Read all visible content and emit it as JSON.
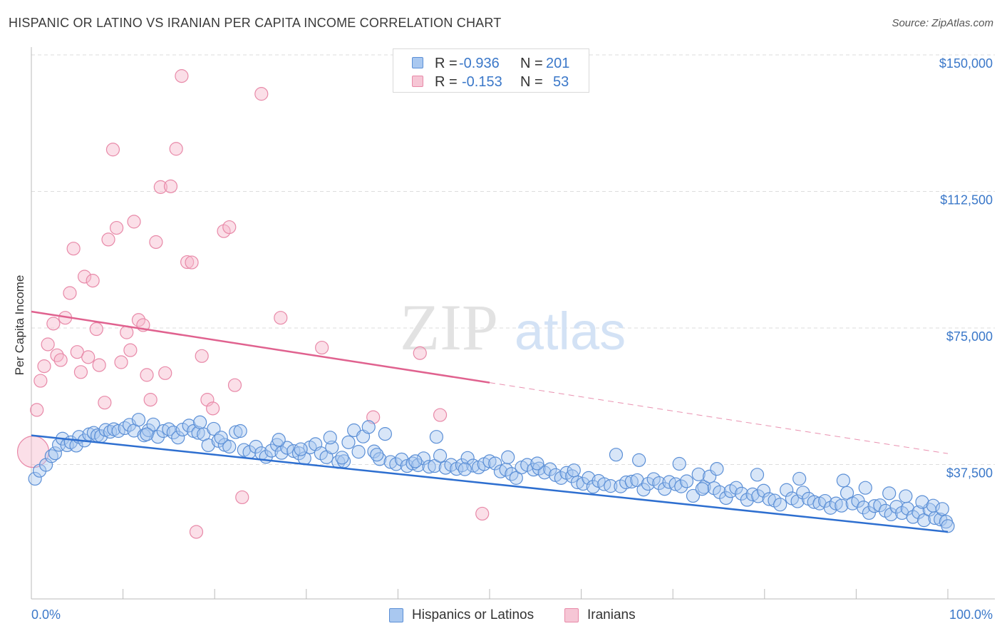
{
  "title": "HISPANIC OR LATINO VS IRANIAN PER CAPITA INCOME CORRELATION CHART",
  "source": "Source: ZipAtlas.com",
  "watermark": {
    "zip": "ZIP",
    "atlas": "atlas"
  },
  "colors": {
    "blue_fill": "#a9c8f0",
    "blue_stroke": "#5b8fd6",
    "blue_line": "#2e6fd0",
    "pink_fill": "#f6b8cb",
    "pink_stroke": "#e889a8",
    "pink_line": "#e0628f",
    "axis_label": "#3b78c9",
    "grid": "#dddddd"
  },
  "stats": {
    "r_label": "R =",
    "n_label": "N =",
    "rows": [
      {
        "series": "Hispanics or Latinos",
        "r": "-0.936",
        "n": "201",
        "color": "blue"
      },
      {
        "series": "Iranians",
        "r": "-0.153",
        "n": "53",
        "color": "pink"
      }
    ]
  },
  "legend": [
    {
      "label": "Hispanics or Latinos",
      "color": "blue"
    },
    {
      "label": "Iranians",
      "color": "pink"
    }
  ],
  "chart_data": {
    "type": "scatter",
    "title": "HISPANIC OR LATINO VS IRANIAN PER CAPITA INCOME CORRELATION CHART",
    "xlabel": "",
    "ylabel": "Per Capita Income",
    "xlim": [
      0,
      100
    ],
    "ylim": [
      0,
      150000
    ],
    "x_tick_labels": [
      "0.0%",
      "100.0%"
    ],
    "y_ticks": [
      37500,
      75000,
      112500,
      150000
    ],
    "y_tick_labels": [
      "$37,500",
      "$75,000",
      "$112,500",
      "$150,000"
    ],
    "grid": true,
    "legend_position": "bottom",
    "series": [
      {
        "name": "Hispanics or Latinos",
        "trend": {
          "x": [
            0,
            100
          ],
          "y": [
            45500,
            19000
          ]
        },
        "points": [
          [
            0.4,
            33600
          ],
          [
            0.9,
            35800
          ],
          [
            1.6,
            37400
          ],
          [
            2.2,
            39800
          ],
          [
            2.6,
            40600
          ],
          [
            3.0,
            42900
          ],
          [
            3.4,
            44600
          ],
          [
            3.9,
            42800
          ],
          [
            4.3,
            43600
          ],
          [
            4.9,
            42700
          ],
          [
            5.2,
            45100
          ],
          [
            5.8,
            44100
          ],
          [
            6.3,
            45800
          ],
          [
            6.8,
            46200
          ],
          [
            7.2,
            45500
          ],
          [
            7.6,
            45300
          ],
          [
            8.1,
            47000
          ],
          [
            8.6,
            46500
          ],
          [
            9.0,
            47200
          ],
          [
            9.5,
            46700
          ],
          [
            10.2,
            47500
          ],
          [
            10.7,
            48400
          ],
          [
            11.2,
            46800
          ],
          [
            11.7,
            49800
          ],
          [
            12.3,
            45500
          ],
          [
            12.8,
            46900
          ],
          [
            13.3,
            48500
          ],
          [
            13.8,
            45100
          ],
          [
            14.4,
            46700
          ],
          [
            15.0,
            47200
          ],
          [
            15.5,
            46300
          ],
          [
            16.0,
            44900
          ],
          [
            16.5,
            47100
          ],
          [
            17.2,
            48200
          ],
          [
            17.7,
            46700
          ],
          [
            18.2,
            46200
          ],
          [
            18.8,
            45800
          ],
          [
            19.3,
            42800
          ],
          [
            19.9,
            47300
          ],
          [
            20.4,
            44000
          ],
          [
            21.1,
            42900
          ],
          [
            21.6,
            42400
          ],
          [
            22.3,
            46400
          ],
          [
            22.8,
            46700
          ],
          [
            23.2,
            41500
          ],
          [
            23.8,
            40900
          ],
          [
            24.5,
            42400
          ],
          [
            25.1,
            40600
          ],
          [
            25.6,
            39600
          ],
          [
            26.2,
            41300
          ],
          [
            26.8,
            42900
          ],
          [
            27.3,
            40700
          ],
          [
            27.9,
            42100
          ],
          [
            28.6,
            41200
          ],
          [
            29.2,
            40600
          ],
          [
            29.8,
            39200
          ],
          [
            30.4,
            42200
          ],
          [
            31.0,
            43100
          ],
          [
            31.6,
            40600
          ],
          [
            32.2,
            39500
          ],
          [
            32.8,
            42200
          ],
          [
            33.5,
            38200
          ],
          [
            34.1,
            38400
          ],
          [
            34.6,
            43600
          ],
          [
            35.2,
            46900
          ],
          [
            35.7,
            41000
          ],
          [
            36.2,
            45200
          ],
          [
            36.8,
            47800
          ],
          [
            37.4,
            41100
          ],
          [
            38.0,
            39000
          ],
          [
            38.6,
            45900
          ],
          [
            39.2,
            38200
          ],
          [
            39.8,
            37600
          ],
          [
            40.4,
            38900
          ],
          [
            41.0,
            37100
          ],
          [
            41.6,
            37800
          ],
          [
            42.2,
            37300
          ],
          [
            42.8,
            39200
          ],
          [
            43.4,
            36900
          ],
          [
            44.0,
            37100
          ],
          [
            44.6,
            39900
          ],
          [
            45.2,
            36600
          ],
          [
            45.8,
            37400
          ],
          [
            46.4,
            36300
          ],
          [
            47.0,
            37300
          ],
          [
            47.6,
            39300
          ],
          [
            48.2,
            37200
          ],
          [
            48.8,
            36700
          ],
          [
            49.4,
            37600
          ],
          [
            50.0,
            38400
          ],
          [
            50.6,
            37800
          ],
          [
            51.2,
            35600
          ],
          [
            51.8,
            36100
          ],
          [
            52.4,
            34900
          ],
          [
            52.9,
            33800
          ],
          [
            53.5,
            36700
          ],
          [
            54.1,
            37400
          ],
          [
            54.8,
            36100
          ],
          [
            55.4,
            36400
          ],
          [
            56.0,
            35300
          ],
          [
            56.6,
            36200
          ],
          [
            57.2,
            34600
          ],
          [
            57.8,
            33800
          ],
          [
            58.4,
            35200
          ],
          [
            59.0,
            34300
          ],
          [
            59.6,
            32600
          ],
          [
            60.2,
            32200
          ],
          [
            60.8,
            33800
          ],
          [
            61.3,
            31400
          ],
          [
            61.9,
            33000
          ],
          [
            62.5,
            32100
          ],
          [
            63.2,
            31600
          ],
          [
            63.8,
            40200
          ],
          [
            64.3,
            31500
          ],
          [
            64.9,
            32600
          ],
          [
            65.5,
            32800
          ],
          [
            66.1,
            33200
          ],
          [
            66.8,
            30600
          ],
          [
            67.3,
            32200
          ],
          [
            67.9,
            33500
          ],
          [
            68.5,
            32400
          ],
          [
            69.1,
            30800
          ],
          [
            69.6,
            32700
          ],
          [
            70.3,
            32100
          ],
          [
            70.9,
            31500
          ],
          [
            71.5,
            32900
          ],
          [
            72.2,
            28900
          ],
          [
            72.8,
            34800
          ],
          [
            73.4,
            31300
          ],
          [
            74.0,
            34200
          ],
          [
            74.5,
            31000
          ],
          [
            75.1,
            29900
          ],
          [
            75.8,
            28300
          ],
          [
            76.3,
            30200
          ],
          [
            76.9,
            31100
          ],
          [
            77.5,
            29500
          ],
          [
            78.1,
            27800
          ],
          [
            78.7,
            29300
          ],
          [
            79.3,
            28800
          ],
          [
            79.9,
            30300
          ],
          [
            80.5,
            28000
          ],
          [
            81.1,
            27600
          ],
          [
            81.7,
            26500
          ],
          [
            82.4,
            30500
          ],
          [
            83.0,
            28200
          ],
          [
            83.6,
            27400
          ],
          [
            84.2,
            29800
          ],
          [
            84.8,
            28100
          ],
          [
            85.4,
            27200
          ],
          [
            86.0,
            26800
          ],
          [
            86.6,
            27500
          ],
          [
            87.2,
            25600
          ],
          [
            87.8,
            26800
          ],
          [
            88.4,
            26200
          ],
          [
            89.0,
            29700
          ],
          [
            89.6,
            26800
          ],
          [
            90.2,
            27500
          ],
          [
            90.8,
            25700
          ],
          [
            91.4,
            24200
          ],
          [
            92.0,
            26100
          ],
          [
            92.6,
            26300
          ],
          [
            93.2,
            24800
          ],
          [
            93.8,
            23800
          ],
          [
            94.4,
            25900
          ],
          [
            95.0,
            24200
          ],
          [
            95.6,
            25400
          ],
          [
            96.2,
            23100
          ],
          [
            96.8,
            24400
          ],
          [
            97.4,
            22200
          ],
          [
            98.0,
            25100
          ],
          [
            98.6,
            22800
          ],
          [
            99.2,
            22400
          ],
          [
            99.8,
            21800
          ],
          [
            100.0,
            20600
          ],
          [
            12.6,
            45800
          ],
          [
            18.4,
            49100
          ],
          [
            27.0,
            44300
          ],
          [
            32.6,
            44900
          ],
          [
            44.2,
            45100
          ],
          [
            52.0,
            39500
          ],
          [
            55.2,
            37800
          ],
          [
            59.2,
            35900
          ],
          [
            66.3,
            38700
          ],
          [
            70.7,
            37700
          ],
          [
            74.8,
            36300
          ],
          [
            79.2,
            34700
          ],
          [
            83.8,
            33600
          ],
          [
            88.6,
            33100
          ],
          [
            91.0,
            31100
          ],
          [
            93.6,
            29600
          ],
          [
            95.4,
            28800
          ],
          [
            97.2,
            27200
          ],
          [
            98.4,
            26200
          ],
          [
            99.4,
            25300
          ],
          [
            20.7,
            44900
          ],
          [
            29.4,
            41700
          ],
          [
            33.9,
            39400
          ],
          [
            37.7,
            40200
          ],
          [
            41.9,
            38400
          ],
          [
            47.3,
            36200
          ],
          [
            73.2,
            30800
          ]
        ]
      },
      {
        "name": "Iranians",
        "trend": {
          "x": [
            0,
            50
          ],
          "y": [
            79500,
            60000
          ],
          "dashed_to": {
            "x": 100,
            "y": 40500
          }
        },
        "points": [
          [
            0.2,
            41000
          ],
          [
            0.6,
            52500
          ],
          [
            1.0,
            60500
          ],
          [
            1.4,
            64500
          ],
          [
            1.8,
            70500
          ],
          [
            2.4,
            76200
          ],
          [
            2.8,
            67500
          ],
          [
            3.2,
            66200
          ],
          [
            3.7,
            77800
          ],
          [
            4.2,
            84600
          ],
          [
            4.6,
            96800
          ],
          [
            5.0,
            68400
          ],
          [
            5.4,
            62900
          ],
          [
            5.8,
            89100
          ],
          [
            6.2,
            67000
          ],
          [
            6.7,
            88000
          ],
          [
            7.1,
            74700
          ],
          [
            7.4,
            64800
          ],
          [
            8.0,
            54500
          ],
          [
            8.4,
            99300
          ],
          [
            8.9,
            124000
          ],
          [
            9.3,
            102500
          ],
          [
            9.8,
            65600
          ],
          [
            10.4,
            73800
          ],
          [
            10.8,
            68900
          ],
          [
            11.2,
            104200
          ],
          [
            11.7,
            77200
          ],
          [
            12.2,
            75800
          ],
          [
            12.6,
            62100
          ],
          [
            13.0,
            55300
          ],
          [
            13.6,
            98600
          ],
          [
            14.1,
            113700
          ],
          [
            14.6,
            62600
          ],
          [
            15.2,
            113900
          ],
          [
            15.8,
            124200
          ],
          [
            16.4,
            144200
          ],
          [
            17.0,
            93100
          ],
          [
            17.5,
            93000
          ],
          [
            18.0,
            19000
          ],
          [
            18.6,
            67300
          ],
          [
            19.2,
            55300
          ],
          [
            19.8,
            52900
          ],
          [
            21.0,
            101600
          ],
          [
            21.6,
            102700
          ],
          [
            22.2,
            59300
          ],
          [
            23.0,
            28500
          ],
          [
            25.1,
            139300
          ],
          [
            27.2,
            77800
          ],
          [
            31.7,
            69600
          ],
          [
            37.3,
            50500
          ],
          [
            42.4,
            68100
          ],
          [
            44.6,
            51100
          ],
          [
            49.2,
            24000
          ]
        ]
      }
    ]
  }
}
